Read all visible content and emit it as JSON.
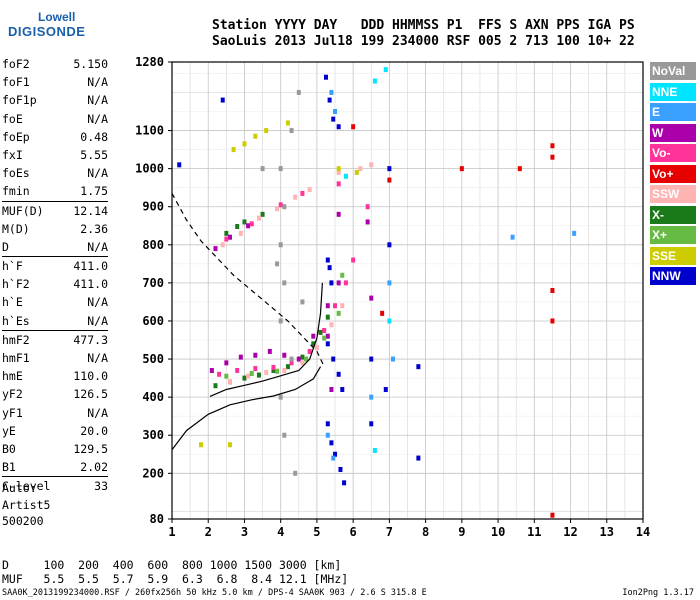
{
  "logo": {
    "line1": "Lowell",
    "line2": "DIGISONDE"
  },
  "header": {
    "line1": "Station YYYY DAY   DDD HHMMSS P1  FFS S AXN PPS IGA PS",
    "line2": "SaoLuis 2013 Jul18 199 234000 RSF 005 2 713 100 10+ 22"
  },
  "params": {
    "g1": [
      [
        "foF2",
        "5.150"
      ],
      [
        "foF1",
        "N/A"
      ],
      [
        "foF1p",
        "N/A"
      ],
      [
        "foE",
        "N/A"
      ],
      [
        "foEp",
        "0.48"
      ],
      [
        "fxI",
        "5.55"
      ],
      [
        "foEs",
        "N/A"
      ],
      [
        "fmin",
        "1.75"
      ]
    ],
    "g2": [
      [
        "MUF(D)",
        "12.14"
      ],
      [
        "M(D)",
        "2.36"
      ],
      [
        "D",
        "N/A"
      ]
    ],
    "g3": [
      [
        "h`F",
        "411.0"
      ],
      [
        "h`F2",
        "411.0"
      ],
      [
        "h`E",
        "N/A"
      ],
      [
        "h`Es",
        "N/A"
      ]
    ],
    "g4": [
      [
        "hmF2",
        "477.3"
      ],
      [
        "hmF1",
        "N/A"
      ],
      [
        "hmE",
        "110.0"
      ],
      [
        "yF2",
        "126.5"
      ],
      [
        "yF1",
        "N/A"
      ],
      [
        "yE",
        "20.0"
      ],
      [
        "B0",
        "129.5"
      ],
      [
        "B1",
        "2.02"
      ]
    ],
    "g5": [
      [
        "C-level",
        "33"
      ]
    ]
  },
  "auto": {
    "line1": "Auto:",
    "line2": "Artist5",
    "line3": "500200"
  },
  "legend": [
    {
      "label": "NoVal",
      "color": "#999999"
    },
    {
      "label": "NNE",
      "color": "#00e5ff"
    },
    {
      "label": "E",
      "color": "#3aa0ff"
    },
    {
      "label": "W",
      "color": "#aa00aa"
    },
    {
      "label": "Vo-",
      "color": "#ff3399"
    },
    {
      "label": "Vo+",
      "color": "#e60000"
    },
    {
      "label": "SSW",
      "color": "#ffb3b3"
    },
    {
      "label": "X-",
      "color": "#1a7a1a"
    },
    {
      "label": "X+",
      "color": "#66bb44"
    },
    {
      "label": "SSE",
      "color": "#cccc00"
    },
    {
      "label": "NNW",
      "color": "#0000cc"
    }
  ],
  "dmuf": {
    "line1": "D     100  200  400  600  800 1000 1500 3000 [km]",
    "line2": "MUF   5.5  5.5  5.7  5.9  6.3  6.8  8.4 12.1 [MHz]"
  },
  "footer": "SAA0K_2013199234000.RSF / 260fx256h 50 kHz 5.0 km / DPS-4 SAA0K 903 / 2.6 S 315.8 E",
  "version": "Ion2Png 1.3.17",
  "chart_data": {
    "type": "scatter",
    "title": "",
    "xlabel": "",
    "ylabel": "",
    "xlim": [
      1,
      14
    ],
    "ylim": [
      80,
      1280
    ],
    "yscale": "linear",
    "x_ticks": [
      1,
      2,
      3,
      4,
      5,
      6,
      7,
      8,
      9,
      10,
      11,
      12,
      13,
      14
    ],
    "y_ticks": [
      80,
      200,
      300,
      400,
      500,
      600,
      700,
      800,
      900,
      1000,
      1100,
      1280
    ],
    "grid": true,
    "series": [
      {
        "name": "X-",
        "color": "#1a7a1a",
        "points": [
          [
            2.2,
            430
          ],
          [
            2.6,
            440
          ],
          [
            3.0,
            450
          ],
          [
            3.4,
            458
          ],
          [
            3.8,
            470
          ],
          [
            4.2,
            480
          ],
          [
            4.6,
            505
          ],
          [
            4.9,
            540
          ],
          [
            5.1,
            570
          ],
          [
            5.3,
            610
          ],
          [
            2.5,
            830
          ],
          [
            3.0,
            860
          ],
          [
            3.5,
            880
          ],
          [
            2.8,
            848
          ]
        ]
      },
      {
        "name": "W",
        "color": "#aa00aa",
        "points": [
          [
            2.1,
            470
          ],
          [
            2.5,
            490
          ],
          [
            2.9,
            505
          ],
          [
            3.3,
            510
          ],
          [
            3.7,
            520
          ],
          [
            4.1,
            510
          ],
          [
            4.5,
            500
          ],
          [
            4.9,
            560
          ],
          [
            5.3,
            640
          ],
          [
            5.6,
            700
          ],
          [
            2.2,
            790
          ],
          [
            2.6,
            820
          ],
          [
            3.1,
            850
          ],
          [
            5.6,
            880
          ],
          [
            6.4,
            860
          ],
          [
            6.5,
            660
          ],
          [
            5.3,
            560
          ],
          [
            5.4,
            420
          ]
        ]
      },
      {
        "name": "Vo-",
        "color": "#ff3399",
        "points": [
          [
            2.3,
            460
          ],
          [
            2.8,
            470
          ],
          [
            3.3,
            475
          ],
          [
            3.8,
            478
          ],
          [
            4.3,
            490
          ],
          [
            4.8,
            520
          ],
          [
            5.2,
            575
          ],
          [
            5.5,
            640
          ],
          [
            5.8,
            700
          ],
          [
            6.0,
            760
          ],
          [
            2.5,
            815
          ],
          [
            3.2,
            855
          ],
          [
            4.0,
            905
          ],
          [
            4.6,
            935
          ],
          [
            5.6,
            960
          ],
          [
            6.4,
            900
          ]
        ]
      },
      {
        "name": "SSW",
        "color": "#ffb3b3",
        "points": [
          [
            2.4,
            800
          ],
          [
            2.9,
            830
          ],
          [
            3.4,
            870
          ],
          [
            3.9,
            895
          ],
          [
            4.4,
            925
          ],
          [
            4.8,
            945
          ],
          [
            5.6,
            990
          ],
          [
            6.2,
            1000
          ],
          [
            6.5,
            1010
          ],
          [
            2.6,
            440
          ],
          [
            3.1,
            455
          ],
          [
            3.6,
            465
          ],
          [
            4.1,
            470
          ],
          [
            4.6,
            490
          ],
          [
            5.0,
            530
          ],
          [
            5.4,
            590
          ],
          [
            5.7,
            640
          ]
        ]
      },
      {
        "name": "X+",
        "color": "#66bb44",
        "points": [
          [
            2.5,
            455
          ],
          [
            3.2,
            462
          ],
          [
            3.9,
            468
          ],
          [
            4.7,
            500
          ],
          [
            5.2,
            555
          ],
          [
            5.6,
            620
          ],
          [
            5.7,
            720
          ]
        ]
      },
      {
        "name": "SSE",
        "color": "#cccc00",
        "points": [
          [
            2.7,
            1050
          ],
          [
            3.0,
            1065
          ],
          [
            3.3,
            1085
          ],
          [
            3.6,
            1100
          ],
          [
            4.2,
            1120
          ],
          [
            5.6,
            1000
          ],
          [
            6.1,
            990
          ],
          [
            1.8,
            275
          ],
          [
            2.6,
            275
          ]
        ]
      },
      {
        "name": "NNW",
        "color": "#0000cc",
        "points": [
          [
            5.25,
            1240
          ],
          [
            5.35,
            1180
          ],
          [
            5.45,
            1130
          ],
          [
            5.6,
            1110
          ],
          [
            5.3,
            760
          ],
          [
            5.35,
            740
          ],
          [
            5.4,
            700
          ],
          [
            5.3,
            540
          ],
          [
            5.45,
            500
          ],
          [
            5.6,
            460
          ],
          [
            5.7,
            420
          ],
          [
            5.3,
            330
          ],
          [
            5.4,
            280
          ],
          [
            5.5,
            250
          ],
          [
            5.65,
            210
          ],
          [
            5.75,
            175
          ],
          [
            6.5,
            330
          ],
          [
            6.5,
            500
          ],
          [
            6.9,
            420
          ],
          [
            7.0,
            1000
          ],
          [
            7.0,
            800
          ],
          [
            7.8,
            240
          ],
          [
            7.8,
            480
          ],
          [
            2.4,
            1180
          ],
          [
            1.2,
            1010
          ]
        ]
      },
      {
        "name": "E",
        "color": "#3aa0ff",
        "points": [
          [
            5.4,
            1200
          ],
          [
            5.5,
            1150
          ],
          [
            5.3,
            300
          ],
          [
            5.45,
            240
          ],
          [
            6.5,
            400
          ],
          [
            7.0,
            700
          ],
          [
            7.1,
            500
          ],
          [
            10.4,
            820
          ],
          [
            12.1,
            830
          ]
        ]
      },
      {
        "name": "NNE",
        "color": "#00e5ff",
        "points": [
          [
            6.6,
            1230
          ],
          [
            6.9,
            1260
          ],
          [
            5.8,
            980
          ],
          [
            7.0,
            600
          ],
          [
            6.6,
            260
          ]
        ]
      },
      {
        "name": "Vo+",
        "color": "#e60000",
        "points": [
          [
            11.5,
            1060
          ],
          [
            11.5,
            1030
          ],
          [
            11.5,
            680
          ],
          [
            11.5,
            600
          ],
          [
            11.5,
            90
          ],
          [
            9.0,
            1000
          ],
          [
            10.6,
            1000
          ],
          [
            6.0,
            1110
          ],
          [
            7.0,
            970
          ],
          [
            6.8,
            620
          ]
        ]
      },
      {
        "name": "NoVal",
        "color": "#999999",
        "points": [
          [
            4.0,
            1000
          ],
          [
            4.0,
            800
          ],
          [
            4.0,
            600
          ],
          [
            4.0,
            400
          ],
          [
            4.1,
            900
          ],
          [
            4.1,
            700
          ],
          [
            4.1,
            300
          ],
          [
            4.3,
            1100
          ],
          [
            4.3,
            500
          ],
          [
            4.4,
            200
          ],
          [
            4.5,
            1200
          ],
          [
            3.5,
            1000
          ],
          [
            3.9,
            750
          ],
          [
            4.6,
            650
          ]
        ]
      }
    ],
    "curves": [
      {
        "style": "solid",
        "points": [
          [
            1.0,
            262
          ],
          [
            1.4,
            312
          ],
          [
            2.0,
            355
          ],
          [
            2.6,
            380
          ],
          [
            3.2,
            393
          ],
          [
            3.8,
            403
          ],
          [
            4.4,
            420
          ],
          [
            4.9,
            448
          ],
          [
            5.1,
            480
          ]
        ]
      },
      {
        "style": "solid",
        "points": [
          [
            2.05,
            402
          ],
          [
            2.5,
            420
          ],
          [
            3.0,
            431
          ],
          [
            3.5,
            442
          ],
          [
            4.0,
            456
          ],
          [
            4.5,
            470
          ],
          [
            4.8,
            500
          ],
          [
            5.0,
            555
          ],
          [
            5.1,
            620
          ],
          [
            5.15,
            700
          ]
        ]
      },
      {
        "style": "dashed",
        "points": [
          [
            1.0,
            935
          ],
          [
            1.4,
            865
          ],
          [
            1.8,
            810
          ],
          [
            2.2,
            770
          ],
          [
            2.7,
            720
          ],
          [
            3.2,
            680
          ],
          [
            3.7,
            640
          ],
          [
            4.2,
            600
          ],
          [
            4.6,
            560
          ],
          [
            5.0,
            520
          ],
          [
            5.2,
            480
          ]
        ]
      }
    ]
  }
}
